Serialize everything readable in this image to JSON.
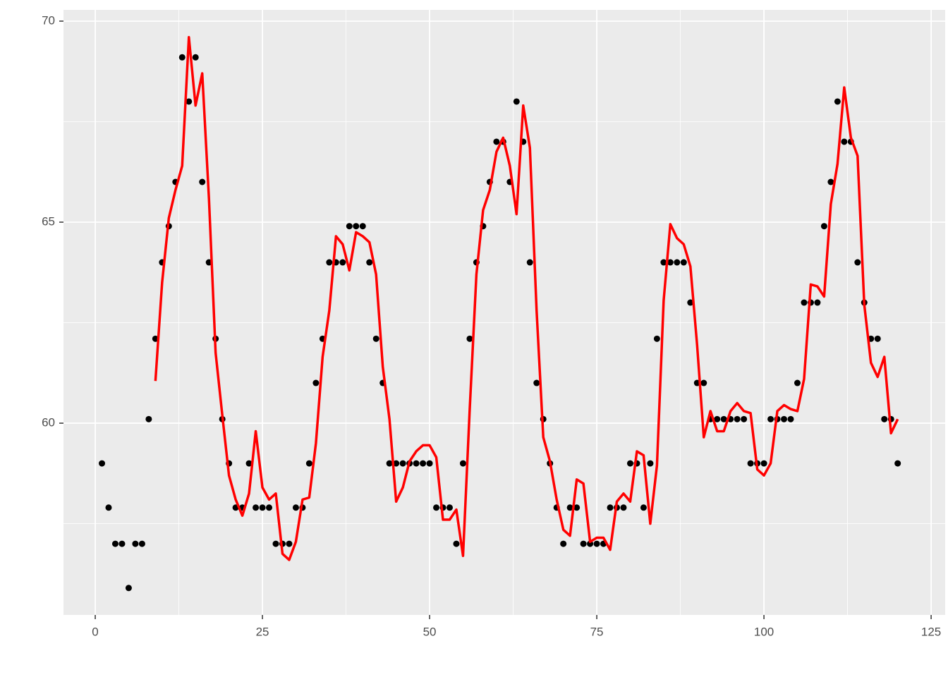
{
  "chart_data": {
    "type": "scatter",
    "x": [
      1,
      2,
      3,
      4,
      5,
      6,
      7,
      8,
      9,
      10,
      11,
      12,
      13,
      14,
      15,
      16,
      17,
      18,
      19,
      20,
      21,
      22,
      23,
      24,
      25,
      26,
      27,
      28,
      29,
      30,
      31,
      32,
      33,
      34,
      35,
      36,
      37,
      38,
      39,
      40,
      41,
      42,
      43,
      44,
      45,
      46,
      47,
      48,
      49,
      50,
      51,
      52,
      53,
      54,
      55,
      56,
      57,
      58,
      59,
      60,
      61,
      62,
      63,
      64,
      65,
      66,
      67,
      68,
      69,
      70,
      71,
      72,
      73,
      74,
      75,
      76,
      77,
      78,
      79,
      80,
      81,
      82,
      83,
      84,
      85,
      86,
      87,
      88,
      89,
      90,
      91,
      92,
      93,
      94,
      95,
      96,
      97,
      98,
      99,
      100,
      101,
      102,
      103,
      104,
      105,
      106,
      107,
      108,
      109,
      110,
      111,
      112,
      113,
      114,
      115,
      116,
      117,
      118,
      119,
      120
    ],
    "series": [
      {
        "type": "scatter",
        "color": "#000000",
        "values": [
          59,
          57.9,
          57,
          57,
          55.9,
          57,
          57,
          60.1,
          62.1,
          64,
          64.9,
          66,
          69.1,
          68,
          69.1,
          66,
          64,
          62.1,
          60.1,
          59,
          57.9,
          57.9,
          59,
          57.9,
          57.9,
          57.9,
          57,
          57,
          57,
          57.9,
          57.9,
          59,
          61,
          62.1,
          64,
          64,
          64,
          64.9,
          64.9,
          64.9,
          64,
          62.1,
          61,
          59,
          59,
          59,
          59,
          59,
          59,
          59,
          57.9,
          57.9,
          57.9,
          57,
          59,
          62.1,
          64,
          64.9,
          66,
          67,
          67,
          66,
          68,
          67,
          64,
          61,
          60.1,
          59,
          57.9,
          57,
          57.9,
          57.9,
          57,
          57,
          57,
          57,
          57.9,
          57.9,
          57.9,
          59,
          59,
          57.9,
          59,
          62.1,
          64,
          64,
          64,
          64,
          63,
          61,
          61,
          60.1,
          60.1,
          60.1,
          60.1,
          60.1,
          60.1,
          59,
          59,
          59,
          60.1,
          60.1,
          60.1,
          60.1,
          61,
          63,
          63,
          63,
          64.9,
          66,
          68,
          67,
          67,
          64,
          63,
          62.1,
          62.1,
          60.1,
          60.1,
          59
        ]
      },
      {
        "type": "line",
        "color": "#ff0000",
        "values": [
          null,
          null,
          null,
          null,
          null,
          null,
          null,
          null,
          61.05,
          63.5,
          65.1,
          65.8,
          66.4,
          69.6,
          67.9,
          68.7,
          65.6,
          61.75,
          60.2,
          58.7,
          58.1,
          57.7,
          58.25,
          59.8,
          58.4,
          58.1,
          58.25,
          56.75,
          56.6,
          57.05,
          58.1,
          58.15,
          59.5,
          61.65,
          62.8,
          64.65,
          64.45,
          63.8,
          64.75,
          64.65,
          64.5,
          63.7,
          61.4,
          60.1,
          58.05,
          58.4,
          59.05,
          59.3,
          59.45,
          59.45,
          59.15,
          57.6,
          57.6,
          57.85,
          56.7,
          60.35,
          63.7,
          65.3,
          65.8,
          66.75,
          67.1,
          66.4,
          65.2,
          67.9,
          66.85,
          62.8,
          59.65,
          59.05,
          58.1,
          57.35,
          57.2,
          58.6,
          58.5,
          57.05,
          57.15,
          57.15,
          56.85,
          58.05,
          58.25,
          58.05,
          59.3,
          59.2,
          57.5,
          58.95,
          63.05,
          64.95,
          64.6,
          64.45,
          63.9,
          61.95,
          59.65,
          60.3,
          59.8,
          59.8,
          60.3,
          60.5,
          60.3,
          60.25,
          58.85,
          58.7,
          59.0,
          60.3,
          60.45,
          60.35,
          60.3,
          61.1,
          63.45,
          63.4,
          63.15,
          65.45,
          66.45,
          68.35,
          67.1,
          66.65,
          62.95,
          61.5,
          61.15,
          61.65,
          59.75,
          60.1
        ]
      }
    ],
    "xlim": [
      -4.75,
      127.1
    ],
    "ylim": [
      55.23,
      70.28
    ],
    "xticks": [
      0,
      25,
      50,
      75,
      100,
      125
    ],
    "yticks": [
      60,
      65,
      70
    ],
    "x_minor_grid": [
      12.5,
      37.5,
      62.5,
      87.5,
      112.5
    ],
    "y_minor_grid": [
      57.5,
      62.5,
      67.5
    ],
    "grid": true,
    "background": "#ebebeb"
  }
}
